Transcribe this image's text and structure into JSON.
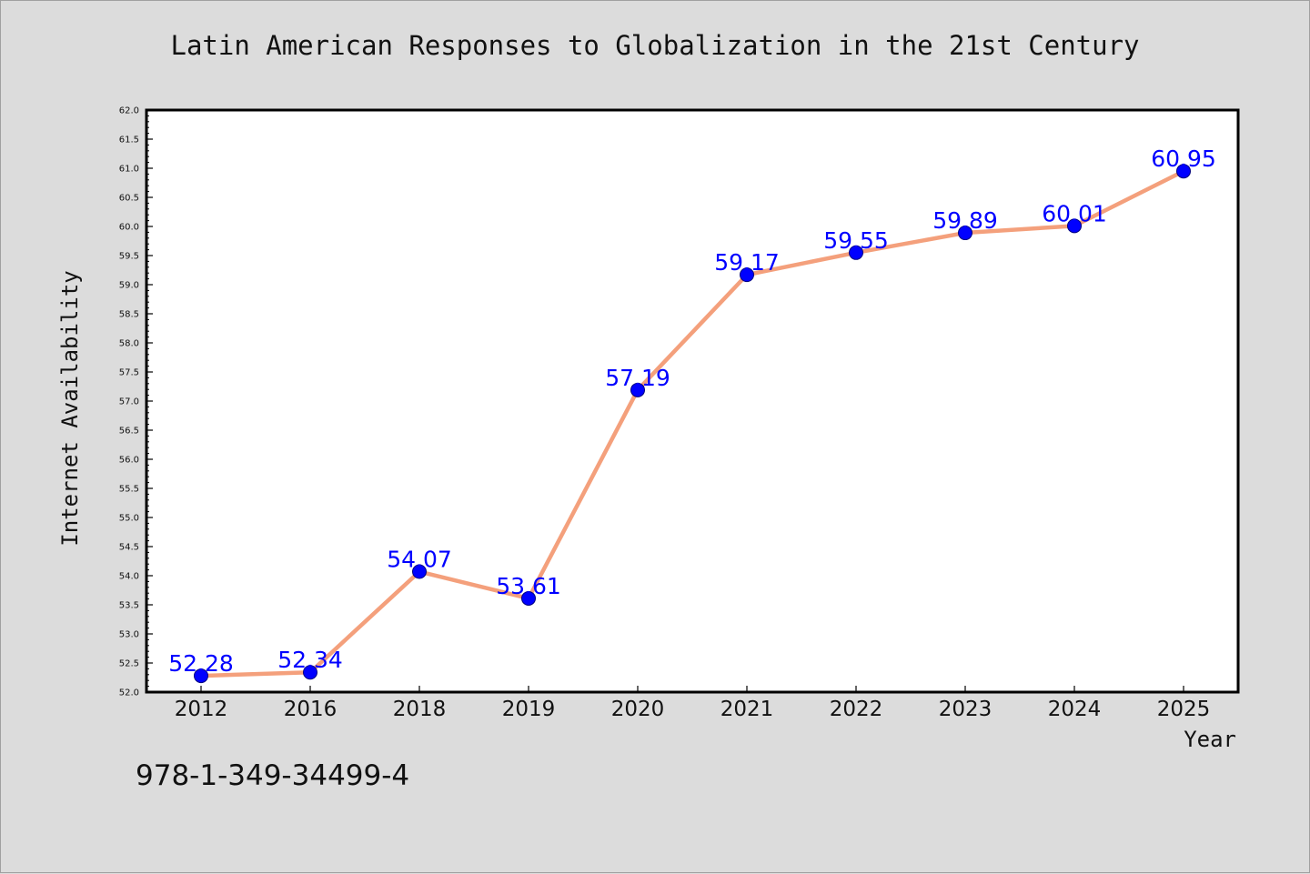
{
  "chart_data": {
    "type": "line",
    "title": "Latin American Responses to Globalization in the 21st Century",
    "xlabel": "Year",
    "ylabel": "Internet Availability",
    "categories": [
      "2012",
      "2016",
      "2018",
      "2019",
      "2020",
      "2021",
      "2022",
      "2023",
      "2024",
      "2025"
    ],
    "series": [
      {
        "values": [
          52.28,
          52.34,
          54.07,
          53.61,
          57.19,
          59.17,
          59.55,
          59.89,
          60.01,
          60.95
        ]
      }
    ],
    "data_labels": [
      "52.28",
      "52.34",
      "54.07",
      "53.61",
      "57.19",
      "59.17",
      "59.55",
      "59.89",
      "60.01",
      "60.95"
    ],
    "ylim": [
      52.0,
      62.0
    ],
    "yticks": [
      "52.0",
      "52.5",
      "53.0",
      "53.5",
      "54.0",
      "54.5",
      "55.0",
      "55.5",
      "56.0",
      "56.5",
      "57.0",
      "57.5",
      "58.0",
      "58.5",
      "59.0",
      "59.5",
      "60.0",
      "60.5",
      "61.0",
      "61.5",
      "62.0"
    ],
    "grid": false,
    "colors": {
      "line": "#f4a07c",
      "marker": "#0000ff",
      "label": "#0000ff",
      "plot_bg": "#ffffff",
      "figure_bg": "#dcdcdc"
    }
  },
  "footer": {
    "isbn": "978-1-349-34499-4"
  }
}
